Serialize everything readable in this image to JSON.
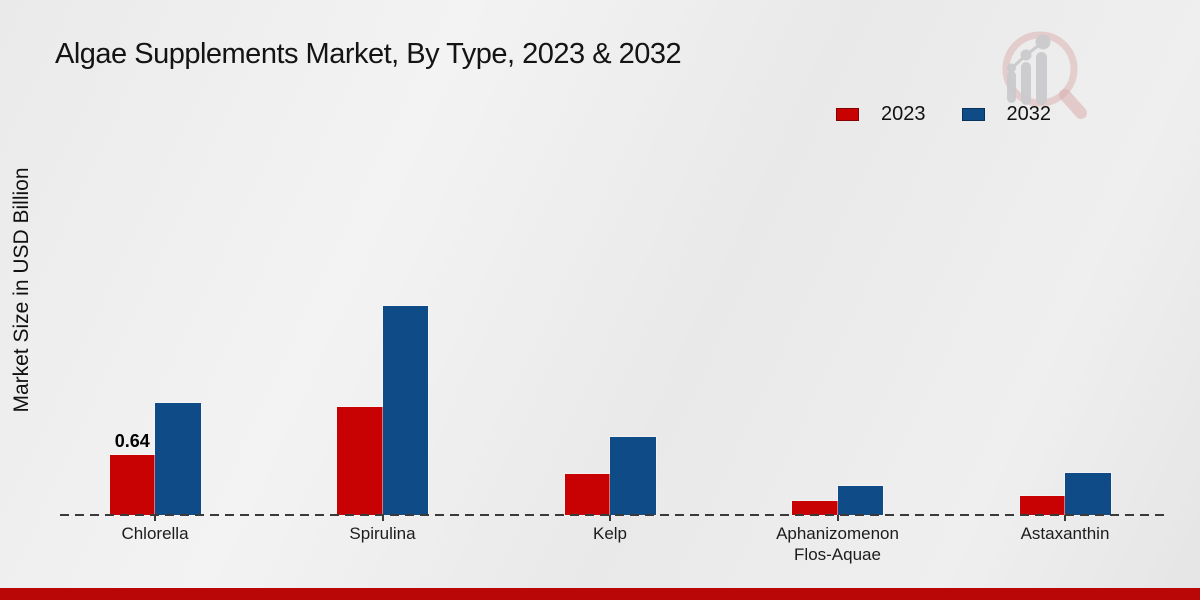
{
  "chart_data": {
    "type": "bar",
    "title": "Algae Supplements Market, By Type, 2023 & 2032",
    "xlabel": "",
    "ylabel": "Market Size in USD Billion",
    "categories": [
      "Chlorella",
      "Spirulina",
      "Kelp",
      "Aphanizomenon Flos-Aquae",
      "Astaxanthin"
    ],
    "series": [
      {
        "name": "2023",
        "color": "#c80202",
        "values": [
          0.64,
          1.15,
          0.44,
          0.15,
          0.2
        ],
        "value_labels": [
          "0.64",
          "",
          "",
          "",
          ""
        ]
      },
      {
        "name": "2032",
        "color": "#0f4c87",
        "values": [
          1.2,
          2.23,
          0.83,
          0.31,
          0.45
        ],
        "value_labels": [
          "",
          "",
          "",
          "",
          ""
        ]
      }
    ],
    "ylim": [
      0,
      2.5
    ],
    "grid": false,
    "legend_position": "top-right",
    "baseline_style": "dashed",
    "y_axis_ticks_visible": false
  },
  "branding": {
    "bottom_bar_color": "#b90707",
    "logo_name": "magnifier-growth-chart-logo",
    "logo_ring_color": "#d9a8a8",
    "logo_bars_color": "#c3c3c7"
  }
}
